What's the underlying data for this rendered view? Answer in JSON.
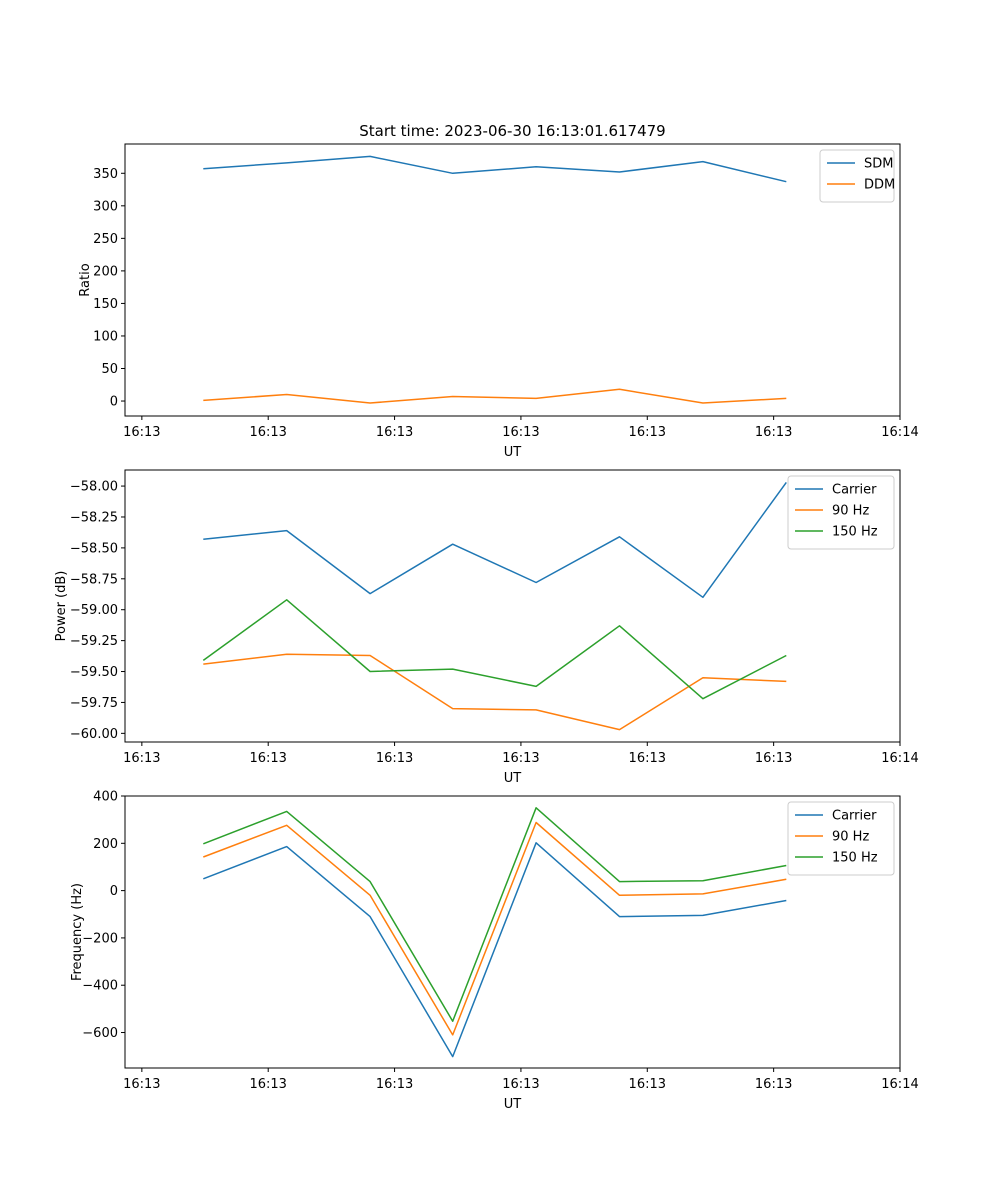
{
  "figure": {
    "title": "Start time: 2023-06-30 16:13:01.617479"
  },
  "chart_data": [
    {
      "type": "line",
      "ylabel": "Ratio",
      "xlabel": "UT",
      "x_tick_labels": [
        "16:13",
        "16:13",
        "16:13",
        "16:13",
        "16:13",
        "16:13",
        "16:14"
      ],
      "x_tick_values": [
        0,
        1.5,
        3,
        4.5,
        6,
        7.5,
        9
      ],
      "xlim": [
        -0.2,
        9.0
      ],
      "ylim": [
        -23,
        395
      ],
      "y_ticks": [
        0,
        50,
        100,
        150,
        200,
        250,
        300,
        350
      ],
      "y_tick_labels": [
        "0",
        "50",
        "100",
        "150",
        "200",
        "250",
        "300",
        "350"
      ],
      "x": [
        0.73,
        1.72,
        2.71,
        3.69,
        4.68,
        5.67,
        6.66,
        7.65
      ],
      "legend_position": "upper-right",
      "series": [
        {
          "name": "SDM",
          "color": "#1f77b4",
          "values": [
            357,
            366,
            376,
            350,
            360,
            352,
            368,
            337
          ]
        },
        {
          "name": "DDM",
          "color": "#ff7f0e",
          "values": [
            1,
            10,
            -3,
            7,
            4,
            18,
            -3,
            4
          ]
        }
      ]
    },
    {
      "type": "line",
      "ylabel": "Power (dB)",
      "xlabel": "UT",
      "x_tick_labels": [
        "16:13",
        "16:13",
        "16:13",
        "16:13",
        "16:13",
        "16:13",
        "16:14"
      ],
      "x_tick_values": [
        0,
        1.5,
        3,
        4.5,
        6,
        7.5,
        9
      ],
      "xlim": [
        -0.2,
        9.0
      ],
      "ylim": [
        -60.07,
        -57.87
      ],
      "y_ticks": [
        -60.0,
        -59.75,
        -59.5,
        -59.25,
        -59.0,
        -58.75,
        -58.5,
        -58.25,
        -58.0
      ],
      "y_tick_labels": [
        "−60.00",
        "−59.75",
        "−59.50",
        "−59.25",
        "−59.00",
        "−58.75",
        "−58.50",
        "−58.25",
        "−58.00"
      ],
      "x": [
        0.73,
        1.72,
        2.71,
        3.69,
        4.68,
        5.67,
        6.66,
        7.65
      ],
      "legend_position": "upper-right",
      "series": [
        {
          "name": "Carrier",
          "color": "#1f77b4",
          "values": [
            -58.43,
            -58.36,
            -58.87,
            -58.47,
            -58.78,
            -58.41,
            -58.9,
            -57.97
          ]
        },
        {
          "name": "90 Hz",
          "color": "#ff7f0e",
          "values": [
            -59.44,
            -59.36,
            -59.37,
            -59.8,
            -59.81,
            -59.97,
            -59.55,
            -59.58
          ]
        },
        {
          "name": "150 Hz",
          "color": "#2ca02c",
          "values": [
            -59.41,
            -58.92,
            -59.5,
            -59.48,
            -59.62,
            -59.13,
            -59.72,
            -59.37
          ]
        }
      ]
    },
    {
      "type": "line",
      "ylabel": "Frequency (Hz)",
      "xlabel": "UT",
      "x_tick_labels": [
        "16:13",
        "16:13",
        "16:13",
        "16:13",
        "16:13",
        "16:13",
        "16:14"
      ],
      "x_tick_values": [
        0,
        1.5,
        3,
        4.5,
        6,
        7.5,
        9
      ],
      "xlim": [
        -0.2,
        9.0
      ],
      "ylim": [
        -750,
        400
      ],
      "y_ticks": [
        -600,
        -400,
        -200,
        0,
        200,
        400
      ],
      "y_tick_labels": [
        "−600",
        "−400",
        "−200",
        "0",
        "200",
        "400"
      ],
      "x": [
        0.73,
        1.72,
        2.71,
        3.69,
        4.68,
        5.67,
        6.66,
        7.65
      ],
      "legend_position": "upper-right",
      "series": [
        {
          "name": "Carrier",
          "color": "#1f77b4",
          "values": [
            50,
            186,
            -110,
            -702,
            202,
            -110,
            -105,
            -42
          ]
        },
        {
          "name": "90 Hz",
          "color": "#ff7f0e",
          "values": [
            142,
            276,
            -20,
            -610,
            288,
            -20,
            -14,
            48
          ]
        },
        {
          "name": "150 Hz",
          "color": "#2ca02c",
          "values": [
            198,
            335,
            38,
            -552,
            350,
            38,
            42,
            106
          ]
        }
      ]
    }
  ]
}
